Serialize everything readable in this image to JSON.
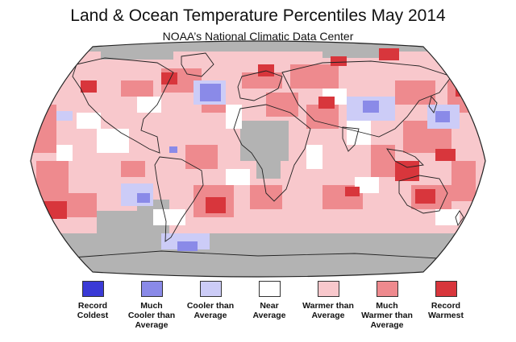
{
  "title": "Land & Ocean Temperature Percentiles May 2014",
  "subtitle": "NOAA’s National Climatic Data Center",
  "map": {
    "projection": "Robinson",
    "no_data_color": "#b3b3b3",
    "outline_color": "#222222",
    "icons": [
      "world-map",
      "continent-outlines"
    ]
  },
  "legend": [
    {
      "label": "Record\nColdest",
      "color": "#3a3ad6"
    },
    {
      "label": "Much\nCooler than\nAverage",
      "color": "#8a8ae8"
    },
    {
      "label": "Cooler than\nAverage",
      "color": "#ccccf7"
    },
    {
      "label": "Near\nAverage",
      "color": "#ffffff"
    },
    {
      "label": "Warmer than\nAverage",
      "color": "#f8c8cc"
    },
    {
      "label": "Much\nWarmer than\nAverage",
      "color": "#ee8a8e"
    },
    {
      "label": "Record\nWarmest",
      "color": "#d8363c"
    }
  ]
}
